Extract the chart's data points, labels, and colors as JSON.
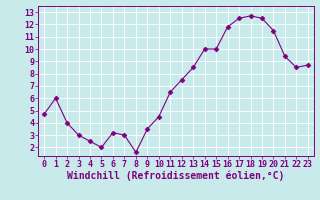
{
  "x": [
    0,
    1,
    2,
    3,
    4,
    5,
    6,
    7,
    8,
    9,
    10,
    11,
    12,
    13,
    14,
    15,
    16,
    17,
    18,
    19,
    20,
    21,
    22,
    23
  ],
  "y": [
    4.7,
    6.0,
    4.0,
    3.0,
    2.5,
    2.0,
    3.2,
    3.0,
    1.6,
    3.5,
    4.5,
    6.5,
    7.5,
    8.5,
    10.0,
    10.0,
    11.8,
    12.5,
    12.7,
    12.5,
    11.5,
    9.4,
    8.5,
    8.7
  ],
  "line_color": "#800080",
  "marker": "D",
  "marker_size": 2.5,
  "bg_color": "#c8eaea",
  "grid_color": "#b0d8d8",
  "xlabel": "Windchill (Refroidissement éolien,°C)",
  "xlim": [
    -0.5,
    23.5
  ],
  "ylim": [
    1.3,
    13.5
  ],
  "yticks": [
    2,
    3,
    4,
    5,
    6,
    7,
    8,
    9,
    10,
    11,
    12,
    13
  ],
  "xticks": [
    0,
    1,
    2,
    3,
    4,
    5,
    6,
    7,
    8,
    9,
    10,
    11,
    12,
    13,
    14,
    15,
    16,
    17,
    18,
    19,
    20,
    21,
    22,
    23
  ],
  "tick_color": "#800080",
  "label_color": "#800080",
  "spine_color": "#800080",
  "xlabel_fontsize": 7.0,
  "tick_fontsize": 6.0
}
